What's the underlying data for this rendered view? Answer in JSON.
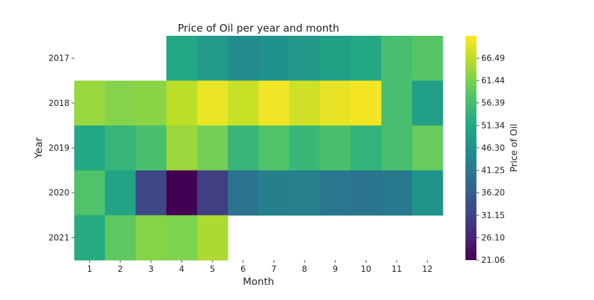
{
  "chart_data": {
    "type": "heatmap",
    "title": "Price of Oil per year and month",
    "xlabel": "Month",
    "ylabel": "Year",
    "colorbar_label": "Price of Oil",
    "x": [
      "1",
      "2",
      "3",
      "4",
      "5",
      "6",
      "7",
      "8",
      "9",
      "10",
      "11",
      "12"
    ],
    "y": [
      "2017",
      "2018",
      "2019",
      "2020",
      "2021"
    ],
    "values": [
      [
        null,
        null,
        null,
        51.5,
        48.6,
        45.2,
        46.6,
        48.0,
        49.8,
        51.6,
        56.7,
        58.1
      ],
      [
        63.7,
        62.2,
        62.7,
        66.3,
        69.9,
        67.3,
        70.6,
        67.9,
        69.8,
        70.8,
        56.7,
        49.5
      ],
      [
        51.4,
        54.4,
        57.0,
        63.9,
        60.8,
        54.7,
        57.4,
        54.8,
        56.9,
        53.9,
        56.7,
        59.8
      ],
      [
        57.5,
        50.5,
        32.0,
        21.1,
        30.4,
        40.3,
        42.8,
        43.0,
        41.1,
        40.5,
        41.4,
        47.0
      ],
      [
        52.0,
        59.0,
        62.3,
        61.7,
        65.1,
        null,
        null,
        null,
        null,
        null,
        null,
        null
      ]
    ],
    "vmin": 21.06,
    "vmax": 71.5,
    "colorbar_ticks": [
      "21.06",
      "26.10",
      "31.15",
      "36.20",
      "41.25",
      "46.30",
      "51.34",
      "56.39",
      "61.44",
      "66.49"
    ],
    "colormap": "viridis",
    "grid": false,
    "legend": "colorbar-right"
  }
}
